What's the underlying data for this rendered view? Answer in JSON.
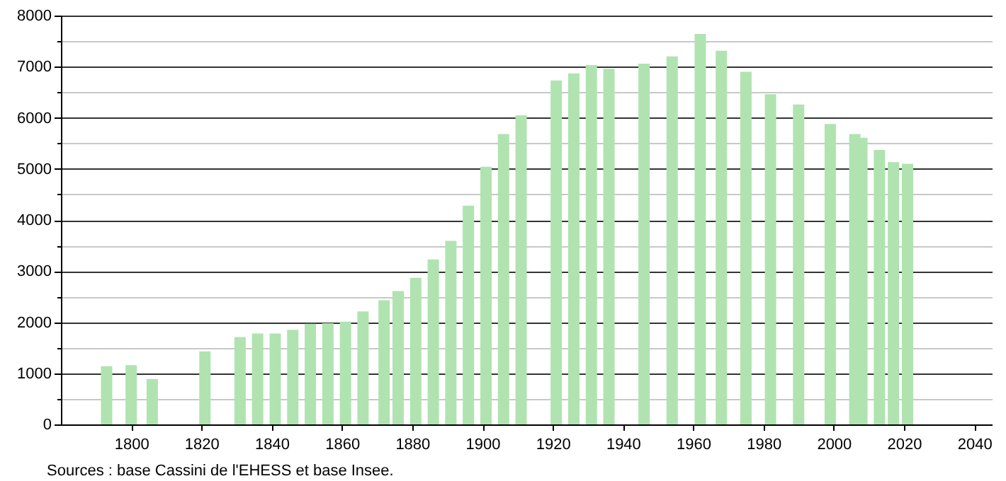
{
  "chart_data": {
    "type": "bar",
    "x": [
      1793,
      1800,
      1806,
      1821,
      1831,
      1836,
      1841,
      1846,
      1851,
      1856,
      1861,
      1866,
      1872,
      1876,
      1881,
      1886,
      1891,
      1896,
      1901,
      1906,
      1911,
      1921,
      1926,
      1931,
      1936,
      1946,
      1954,
      1962,
      1968,
      1975,
      1982,
      1990,
      1999,
      2006,
      2008,
      2013,
      2017,
      2021
    ],
    "values": [
      1140,
      1160,
      890,
      1430,
      1710,
      1780,
      1780,
      1850,
      1970,
      1980,
      2010,
      2210,
      2430,
      2610,
      2870,
      3230,
      3590,
      4280,
      5040,
      5680,
      6050,
      6730,
      6870,
      7030,
      6960,
      7060,
      7200,
      7640,
      7310,
      6900,
      6460,
      6260,
      5880,
      5680,
      5610,
      5370,
      5130,
      5100
    ],
    "color": "#b0e3b0",
    "xlim": [
      1780,
      2045
    ],
    "xticks": [
      1800,
      1820,
      1840,
      1860,
      1880,
      1900,
      1920,
      1940,
      1960,
      1980,
      2000,
      2020,
      2040
    ],
    "ylim": [
      0,
      8000
    ],
    "yticks": [
      0,
      {
        "value": 500,
        "label": null
      },
      1000,
      {
        "value": 1500,
        "label": null
      },
      2000,
      {
        "value": 2500,
        "label": null
      },
      3000,
      {
        "value": 3500,
        "label": null
      },
      4000,
      {
        "value": 4500,
        "label": null
      },
      5000,
      {
        "value": 5500,
        "label": null
      },
      6000,
      {
        "value": 6500,
        "label": null
      },
      7000,
      {
        "value": 7500,
        "label": null
      },
      8000
    ],
    "grid": "y",
    "annotations": [
      "Sources : base Cassini de l'EHESS et base Insee."
    ]
  }
}
